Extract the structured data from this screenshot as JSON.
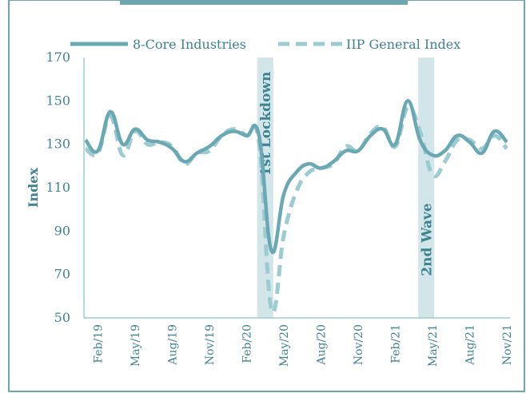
{
  "chart_data": {
    "type": "line",
    "title": "",
    "xlabel": "",
    "ylabel": "Index",
    "ylim": [
      50,
      170
    ],
    "yticks": [
      50,
      70,
      90,
      110,
      130,
      150,
      170
    ],
    "x": [
      "Jan/19",
      "Feb/19",
      "Mar/19",
      "Apr/19",
      "May/19",
      "Jun/19",
      "Jul/19",
      "Aug/19",
      "Sep/19",
      "Oct/19",
      "Nov/19",
      "Dec/19",
      "Jan/20",
      "Feb/20",
      "Mar/20",
      "Apr/20",
      "May/20",
      "Jun/20",
      "Jul/20",
      "Aug/20",
      "Sep/20",
      "Oct/20",
      "Nov/20",
      "Dec/20",
      "Jan/21",
      "Feb/21",
      "Mar/21",
      "Apr/21",
      "May/21",
      "Jun/21",
      "Jul/21",
      "Aug/21",
      "Sep/21",
      "Oct/21",
      "Nov/21"
    ],
    "xtick_labels": [
      "Feb/19",
      "May/19",
      "Aug/19",
      "Nov/19",
      "Feb/20",
      "May/20",
      "Aug/20",
      "Nov/20",
      "Feb/21",
      "May/21",
      "Aug/21",
      "Nov/21"
    ],
    "series": [
      {
        "name": "8-Core Industries",
        "style": "solid",
        "color": "#6aa9b4",
        "values": [
          132,
          127,
          145,
          130,
          137,
          132,
          131,
          128,
          122,
          126,
          129,
          134,
          136,
          134,
          134,
          81,
          107,
          117,
          121,
          119,
          122,
          127,
          127,
          134,
          137,
          130,
          150,
          132,
          125,
          127,
          134,
          131,
          126,
          136,
          131
        ]
      },
      {
        "name": "IIP General Index",
        "style": "dashed",
        "color": "#9ccbd2",
        "values": [
          128,
          126,
          143,
          125,
          136,
          130,
          131,
          129,
          121,
          126,
          127,
          134,
          137,
          134,
          131,
          54,
          88,
          108,
          117,
          119,
          121,
          129,
          127,
          135,
          138,
          129,
          147,
          136,
          116,
          122,
          132,
          132,
          128,
          134,
          128
        ]
      }
    ],
    "shaded_regions": [
      {
        "label": "1st Lockdown",
        "from": "Mar/20",
        "to": "Apr/20"
      },
      {
        "label": "2nd Wave",
        "from": "Apr/21",
        "to": "May/21"
      }
    ],
    "legend_position": "top",
    "grid": false
  },
  "colors": {
    "solid_line": "#6aa9b4",
    "dashed_line": "#9ccbd2",
    "shade": "#d2e6ea",
    "text": "#3f8290",
    "frame": "#6ea6b0"
  }
}
